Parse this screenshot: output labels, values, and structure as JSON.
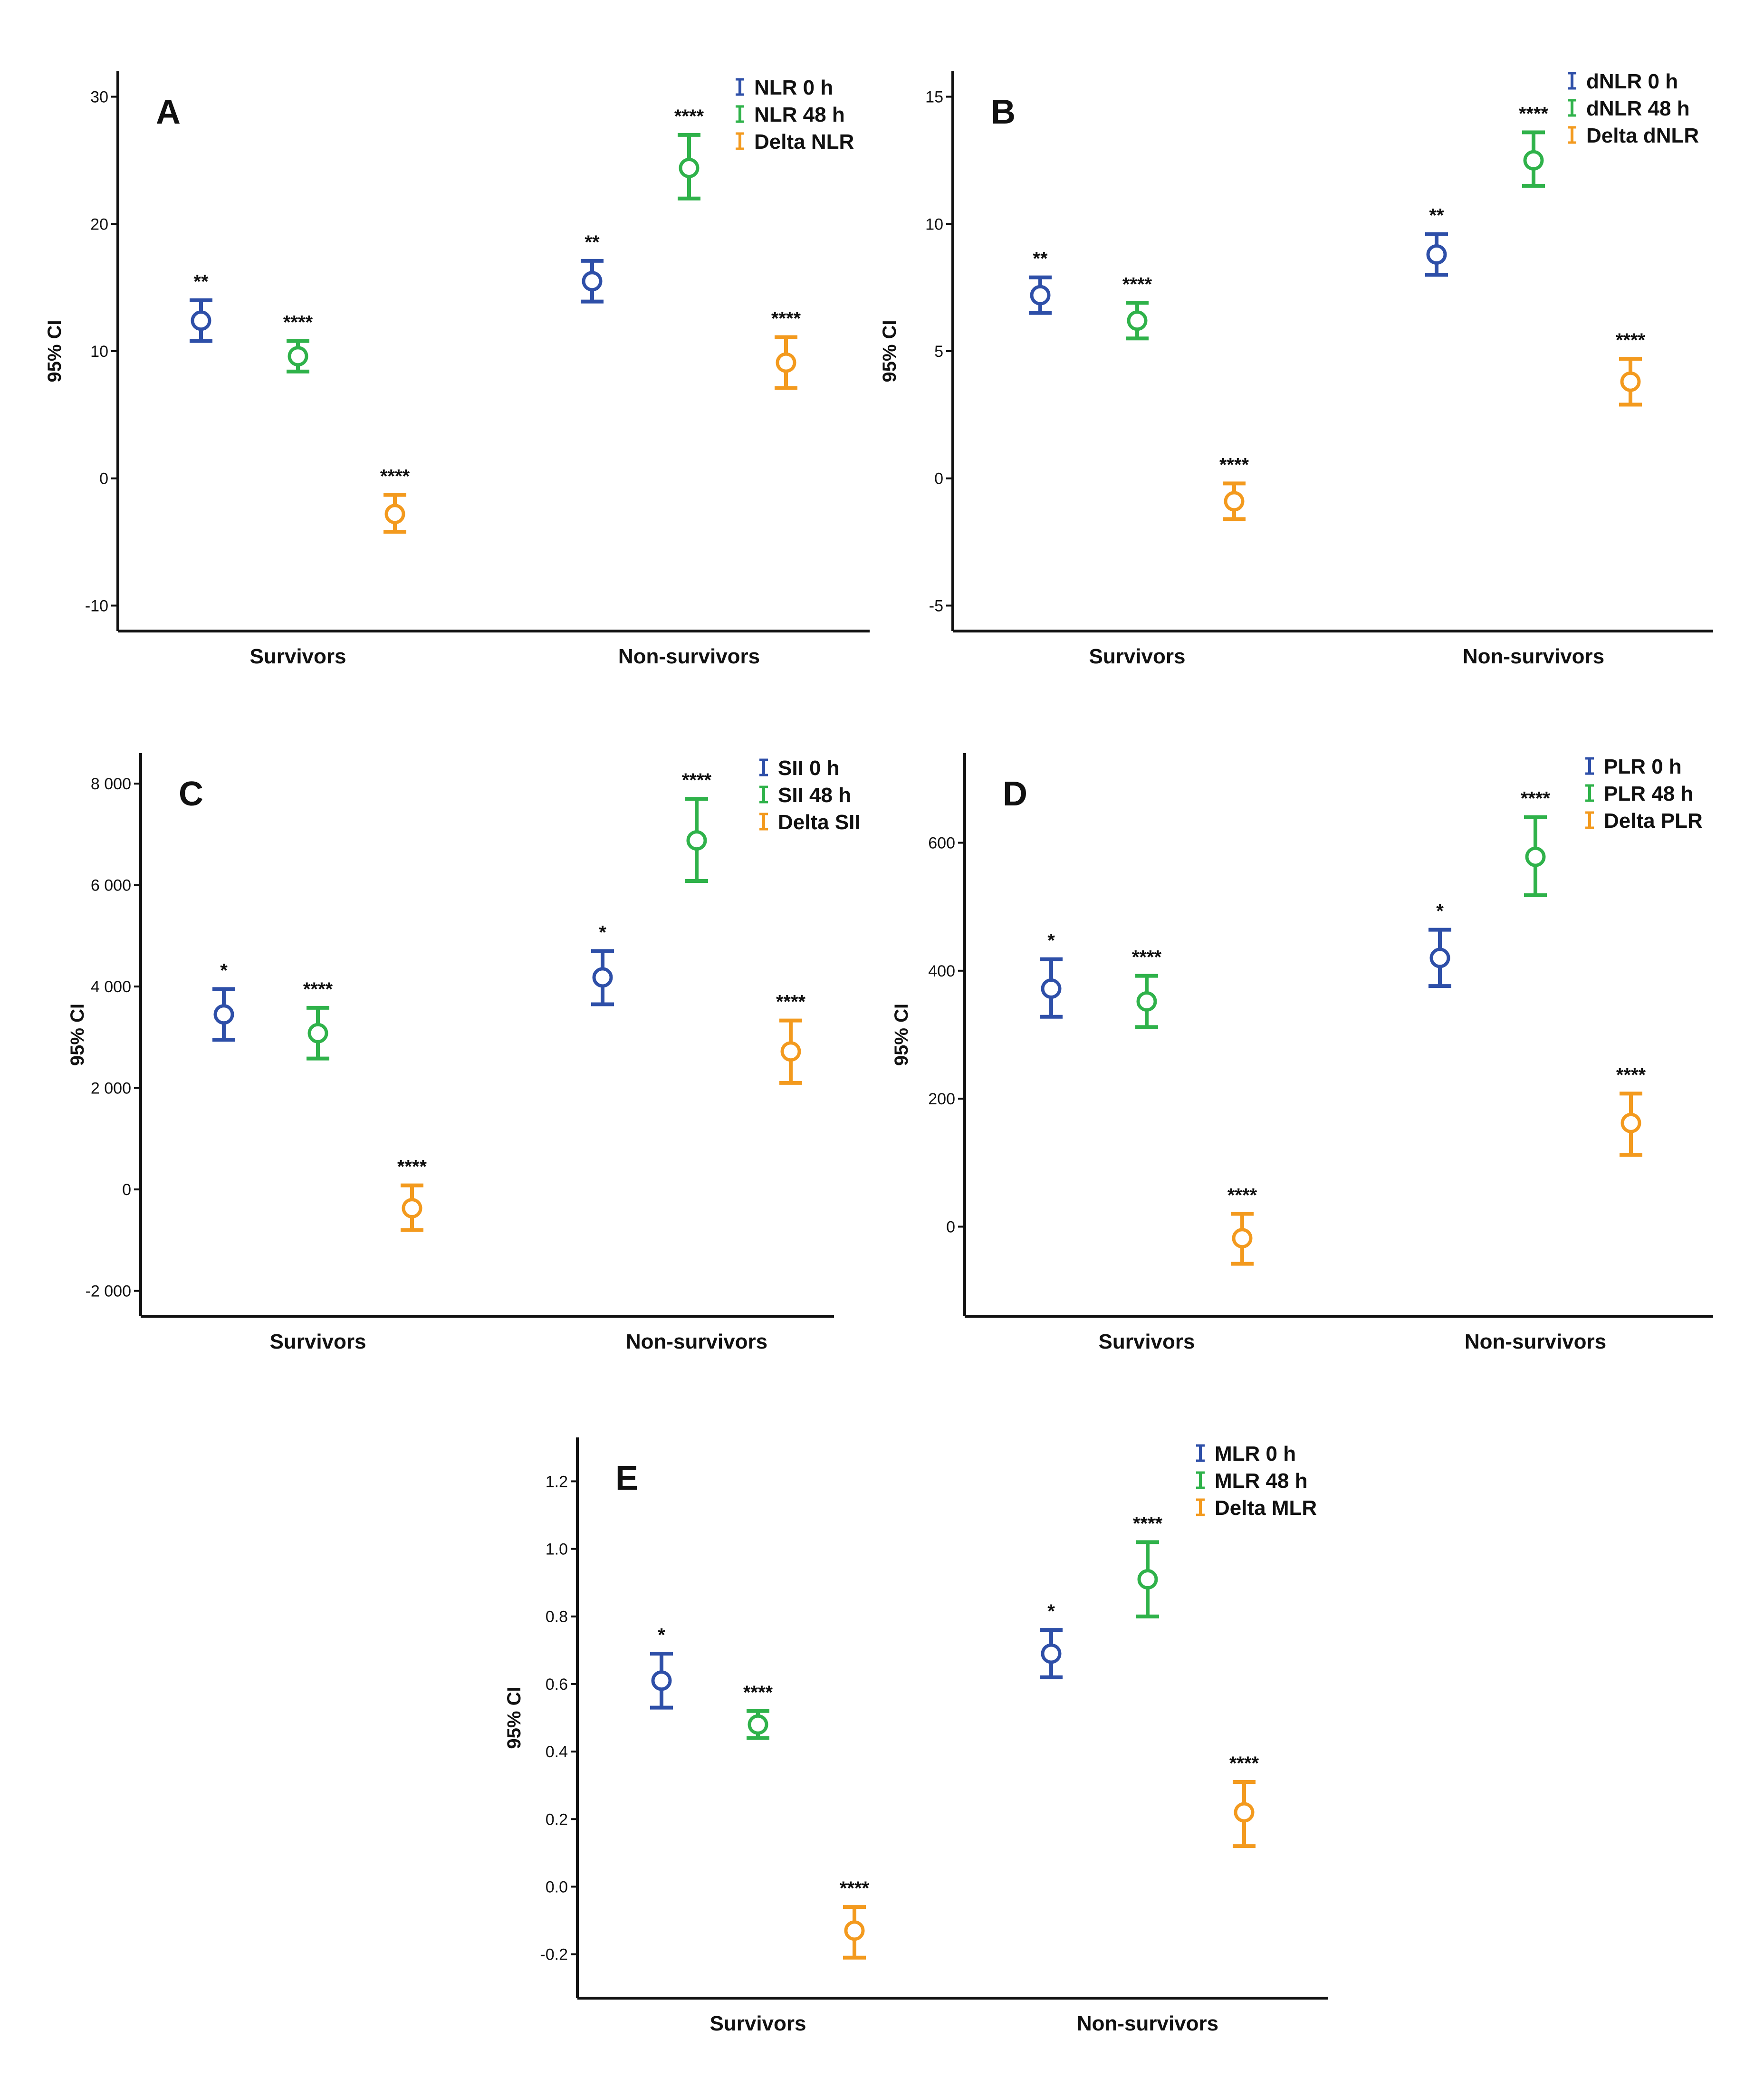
{
  "colors": {
    "blue": "#2e4fa8",
    "green": "#2fb24a",
    "orange": "#f39a1e",
    "axis": "#111111"
  },
  "chart_data": [
    {
      "type": "scatter",
      "panel": "A",
      "ylabel": "95% CI",
      "ylim": [
        -12,
        32
      ],
      "yticks": [
        -10,
        0,
        10,
        20,
        30
      ],
      "ytick_labels": [
        "-10",
        "0",
        "10",
        "20",
        "30"
      ],
      "categories": [
        "Survivors",
        "Non-survivors"
      ],
      "legend_position": "top-right",
      "series": [
        {
          "name": "NLR 0 h",
          "color": "#2e4fa8",
          "points": [
            {
              "mean": 12.4,
              "lower": 10.8,
              "upper": 14.0,
              "sig": "**"
            },
            {
              "mean": 15.5,
              "lower": 13.9,
              "upper": 17.1,
              "sig": "**"
            }
          ]
        },
        {
          "name": "NLR 48 h",
          "color": "#2fb24a",
          "points": [
            {
              "mean": 9.6,
              "lower": 8.4,
              "upper": 10.8,
              "sig": "****"
            },
            {
              "mean": 24.4,
              "lower": 22.0,
              "upper": 27.0,
              "sig": "****"
            }
          ]
        },
        {
          "name": "Delta NLR",
          "color": "#f39a1e",
          "points": [
            {
              "mean": -2.8,
              "lower": -4.2,
              "upper": -1.3,
              "sig": "****"
            },
            {
              "mean": 9.1,
              "lower": 7.1,
              "upper": 11.1,
              "sig": "****"
            }
          ]
        }
      ]
    },
    {
      "type": "scatter",
      "panel": "B",
      "ylabel": "95% CI",
      "ylim": [
        -6,
        16
      ],
      "yticks": [
        -5,
        0,
        5,
        10,
        15
      ],
      "ytick_labels": [
        "-5",
        "0",
        "5",
        "10",
        "15"
      ],
      "categories": [
        "Survivors",
        "Non-survivors"
      ],
      "legend_position": "top-right",
      "series": [
        {
          "name": "dNLR 0 h",
          "color": "#2e4fa8",
          "points": [
            {
              "mean": 7.2,
              "lower": 6.5,
              "upper": 7.9,
              "sig": "**"
            },
            {
              "mean": 8.8,
              "lower": 8.0,
              "upper": 9.6,
              "sig": "**"
            }
          ]
        },
        {
          "name": "dNLR 48 h",
          "color": "#2fb24a",
          "points": [
            {
              "mean": 6.2,
              "lower": 5.5,
              "upper": 6.9,
              "sig": "****"
            },
            {
              "mean": 12.5,
              "lower": 11.5,
              "upper": 13.6,
              "sig": "****"
            }
          ]
        },
        {
          "name": "Delta dNLR",
          "color": "#f39a1e",
          "points": [
            {
              "mean": -0.9,
              "lower": -1.6,
              "upper": -0.2,
              "sig": "****"
            },
            {
              "mean": 3.8,
              "lower": 2.9,
              "upper": 4.7,
              "sig": "****"
            }
          ]
        }
      ]
    },
    {
      "type": "scatter",
      "panel": "C",
      "ylabel": "95% CI",
      "ylim": [
        -2500,
        8600
      ],
      "yticks": [
        -2000,
        0,
        2000,
        4000,
        6000,
        8000
      ],
      "ytick_labels": [
        "-2 000",
        "0",
        "2 000",
        "4 000",
        "6 000",
        "8 000"
      ],
      "categories": [
        "Survivors",
        "Non-survivors"
      ],
      "legend_position": "top-right",
      "series": [
        {
          "name": "SII 0 h",
          "color": "#2e4fa8",
          "points": [
            {
              "mean": 3450,
              "lower": 2950,
              "upper": 3950,
              "sig": "*"
            },
            {
              "mean": 4180,
              "lower": 3650,
              "upper": 4700,
              "sig": "*"
            }
          ]
        },
        {
          "name": "SII 48 h",
          "color": "#2fb24a",
          "points": [
            {
              "mean": 3080,
              "lower": 2580,
              "upper": 3580,
              "sig": "****"
            },
            {
              "mean": 6880,
              "lower": 6080,
              "upper": 7700,
              "sig": "****"
            }
          ]
        },
        {
          "name": "Delta SII",
          "color": "#f39a1e",
          "points": [
            {
              "mean": -370,
              "lower": -800,
              "upper": 80,
              "sig": "****"
            },
            {
              "mean": 2720,
              "lower": 2100,
              "upper": 3330,
              "sig": "****"
            }
          ]
        }
      ]
    },
    {
      "type": "scatter",
      "panel": "D",
      "ylabel": "95% CI",
      "ylim": [
        -140,
        740
      ],
      "yticks": [
        0,
        200,
        400,
        600
      ],
      "ytick_labels": [
        "0",
        "200",
        "400",
        "600"
      ],
      "categories": [
        "Survivors",
        "Non-survivors"
      ],
      "legend_position": "top-right",
      "series": [
        {
          "name": "PLR 0 h",
          "color": "#2e4fa8",
          "points": [
            {
              "mean": 372,
              "lower": 328,
              "upper": 418,
              "sig": "*"
            },
            {
              "mean": 420,
              "lower": 376,
              "upper": 464,
              "sig": "*"
            }
          ]
        },
        {
          "name": "PLR 48 h",
          "color": "#2fb24a",
          "points": [
            {
              "mean": 352,
              "lower": 312,
              "upper": 392,
              "sig": "****"
            },
            {
              "mean": 578,
              "lower": 518,
              "upper": 640,
              "sig": "****"
            }
          ]
        },
        {
          "name": "Delta PLR",
          "color": "#f39a1e",
          "points": [
            {
              "mean": -18,
              "lower": -58,
              "upper": 20,
              "sig": "****"
            },
            {
              "mean": 162,
              "lower": 112,
              "upper": 208,
              "sig": "****"
            }
          ]
        }
      ]
    },
    {
      "type": "scatter",
      "panel": "E",
      "ylabel": "95% CI",
      "ylim": [
        -0.33,
        1.33
      ],
      "yticks": [
        -0.2,
        0.0,
        0.2,
        0.4,
        0.6,
        0.8,
        1.0,
        1.2
      ],
      "ytick_labels": [
        "-0.2",
        "0.0",
        "0.2",
        "0.4",
        "0.6",
        "0.8",
        "1.0",
        "1.2"
      ],
      "categories": [
        "Survivors",
        "Non-survivors"
      ],
      "legend_position": "top-right",
      "series": [
        {
          "name": "MLR 0 h",
          "color": "#2e4fa8",
          "points": [
            {
              "mean": 0.61,
              "lower": 0.53,
              "upper": 0.69,
              "sig": "*"
            },
            {
              "mean": 0.69,
              "lower": 0.62,
              "upper": 0.76,
              "sig": "*"
            }
          ]
        },
        {
          "name": "MLR 48 h",
          "color": "#2fb24a",
          "points": [
            {
              "mean": 0.48,
              "lower": 0.44,
              "upper": 0.52,
              "sig": "****"
            },
            {
              "mean": 0.91,
              "lower": 0.8,
              "upper": 1.02,
              "sig": "****"
            }
          ]
        },
        {
          "name": "Delta MLR",
          "color": "#f39a1e",
          "points": [
            {
              "mean": -0.13,
              "lower": -0.21,
              "upper": -0.06,
              "sig": "****"
            },
            {
              "mean": 0.22,
              "lower": 0.12,
              "upper": 0.31,
              "sig": "****"
            }
          ]
        }
      ]
    }
  ]
}
